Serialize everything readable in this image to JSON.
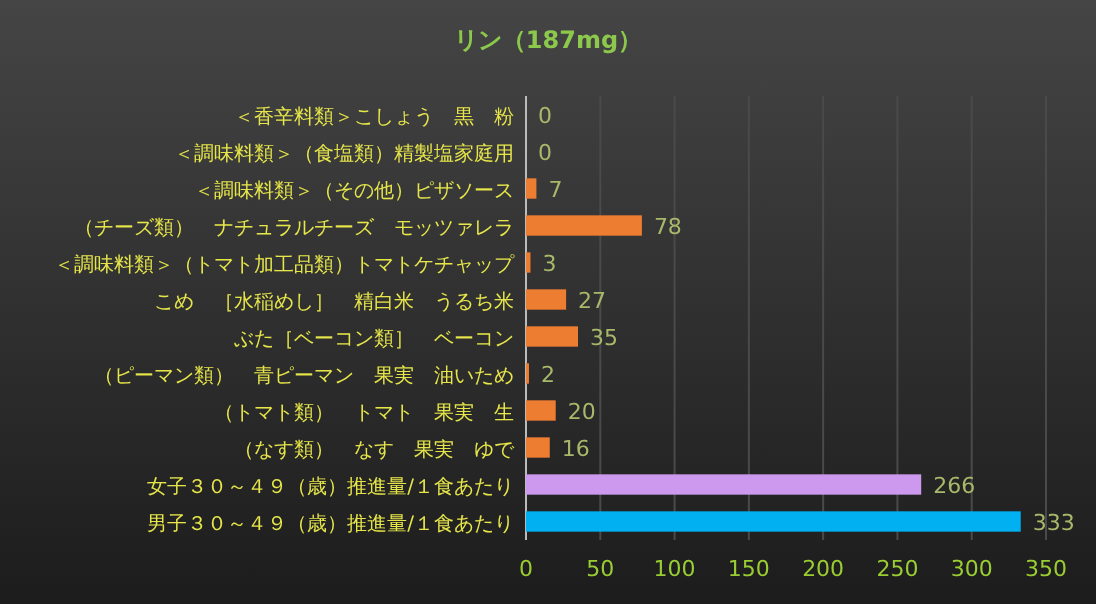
{
  "chart_data": {
    "type": "bar",
    "orientation": "horizontal",
    "title": "リン（187mg）",
    "categories": [
      "＜香辛料類＞こしょう　黒　粉",
      "＜調味料類＞（食塩類）精製塩家庭用",
      "＜調味料類＞（その他）ピザソース",
      "（チーズ類）　ナチュラルチーズ　モッツァレラ",
      "＜調味料類＞（トマト加工品類）トマトケチャップ",
      "こめ　［水稲めし］　精白米　うるち米",
      "ぶた［ベーコン類］　ベーコン",
      "（ピーマン類）　青ピーマン　果実　油いため",
      "（トマト類）　トマト　果実　生",
      "（なす類）　なす　果実　ゆで",
      "女子３０～４９（歳）推進量/１食あたり",
      "男子３０～４９（歳）推進量/１食あたり"
    ],
    "values": [
      0,
      0,
      7,
      78,
      3,
      27,
      35,
      2,
      20,
      16,
      266,
      333
    ],
    "colors": [
      "#ed7d31",
      "#ed7d31",
      "#ed7d31",
      "#ed7d31",
      "#ed7d31",
      "#ed7d31",
      "#ed7d31",
      "#ed7d31",
      "#ed7d31",
      "#ed7d31",
      "#cc99ee",
      "#00b0f0"
    ],
    "xlim": [
      0,
      350
    ],
    "xticks": [
      0,
      50,
      100,
      150,
      200,
      250,
      300,
      350
    ],
    "grid": "x",
    "data_labels": true
  }
}
